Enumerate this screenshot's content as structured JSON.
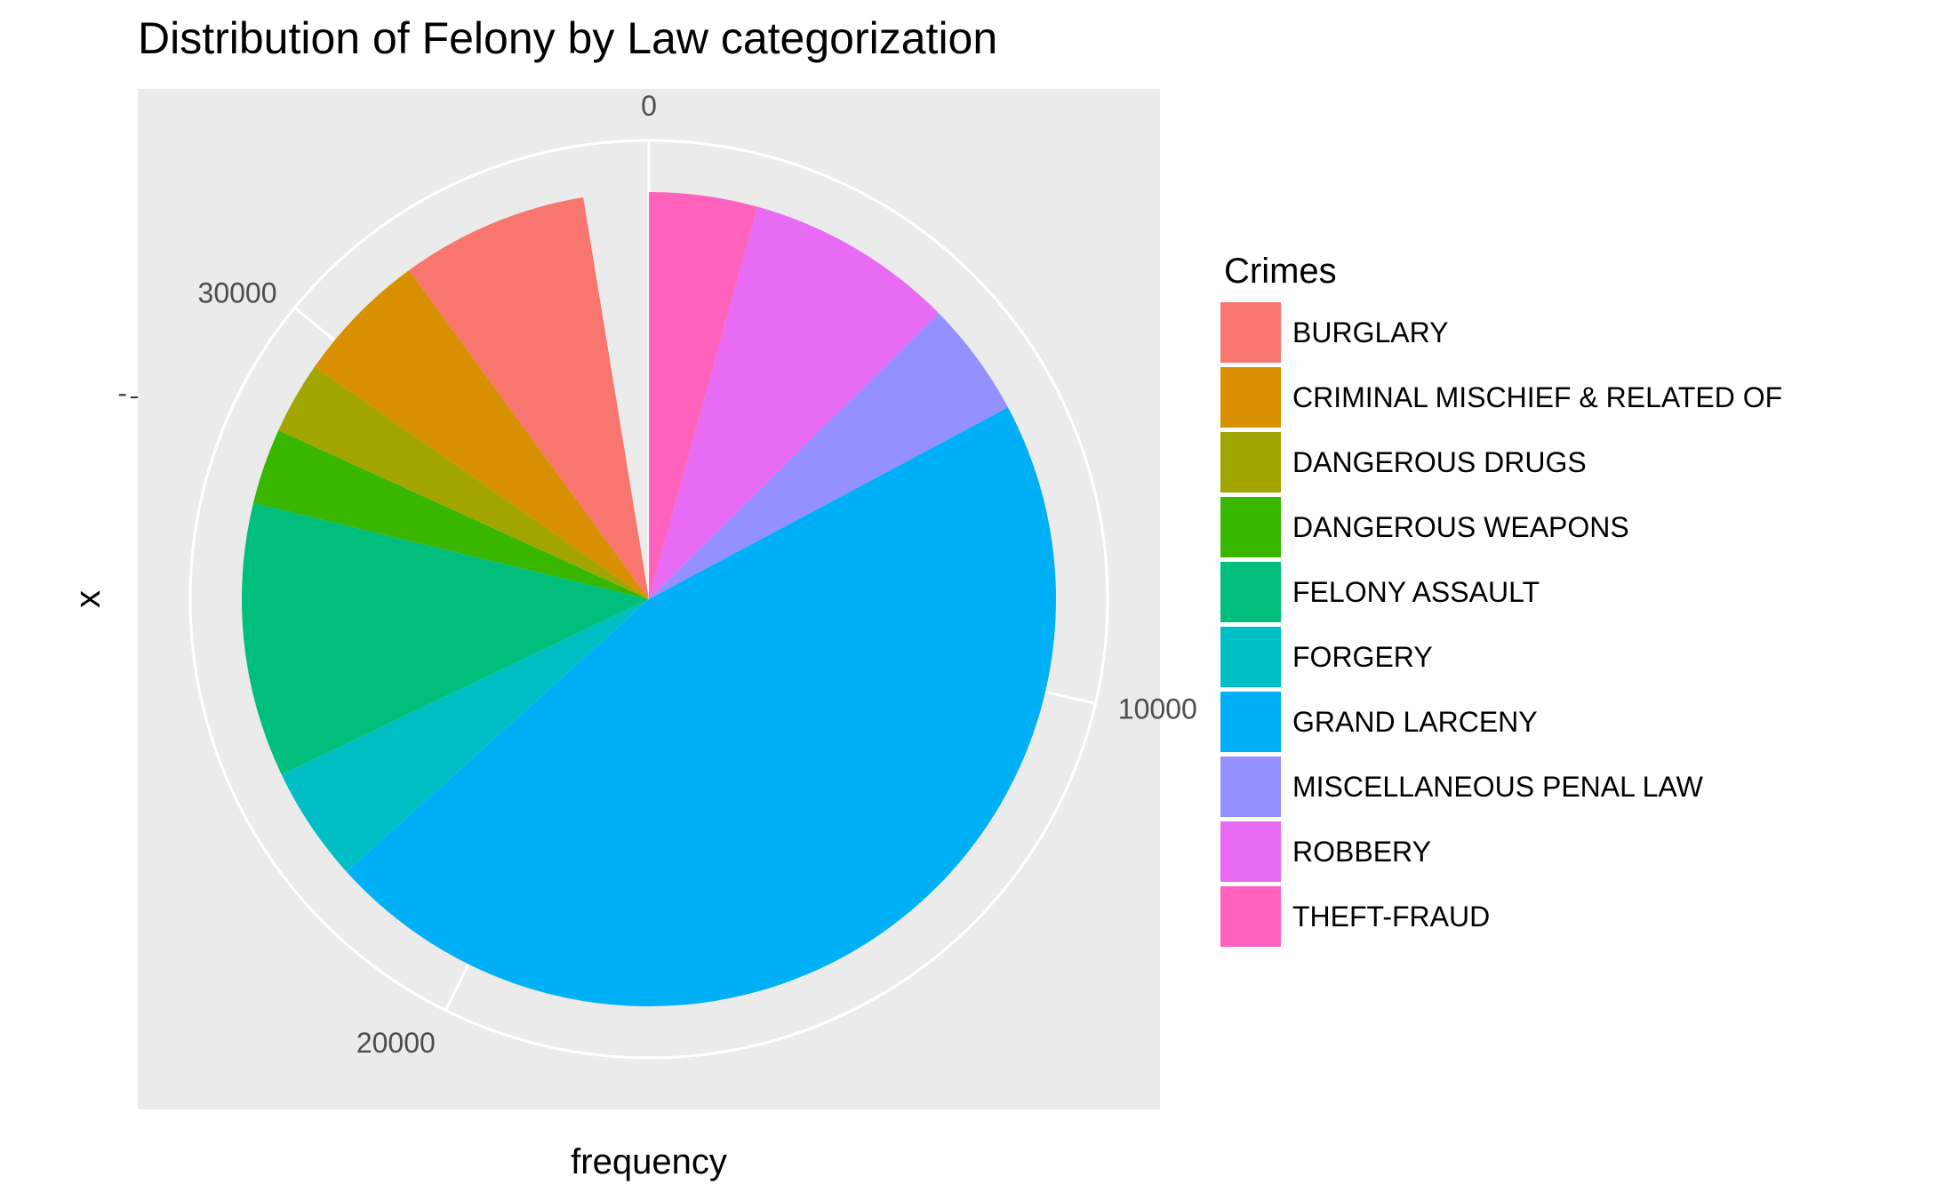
{
  "chart_data": {
    "type": "pie",
    "title": "Distribution of Felony by Law categorization",
    "xlabel": "frequency",
    "ylabel": "x",
    "y_tick_labels": [
      "-"
    ],
    "theta_ticks": [
      0,
      10000,
      20000,
      30000
    ],
    "theta_max": 34900,
    "grid": true,
    "legend_title": "Crimes",
    "legend_position": "right",
    "categories": [
      "BURGLARY",
      "CRIMINAL MISCHIEF & RELATED OF",
      "DANGEROUS DRUGS",
      "DANGEROUS WEAPONS",
      "FELONY ASSAULT",
      "FORGERY",
      "GRAND LARCENY",
      "MISCELLANEOUS PENAL LAW",
      "ROBBERY",
      "THEFT-FRAUD"
    ],
    "values": [
      2600,
      1850,
      1000,
      1050,
      3800,
      1600,
      16100,
      1600,
      2900,
      1500
    ],
    "stack_order": [
      "THEFT-FRAUD",
      "ROBBERY",
      "MISCELLANEOUS PENAL LAW",
      "GRAND LARCENY",
      "FORGERY",
      "FELONY ASSAULT",
      "DANGEROUS WEAPONS",
      "DANGEROUS DRUGS",
      "CRIMINAL MISCHIEF & RELATED OF",
      "BURGLARY"
    ],
    "colors": {
      "BURGLARY": "#F8766D",
      "CRIMINAL MISCHIEF & RELATED OF": "#D89000",
      "DANGEROUS DRUGS": "#A3A500",
      "DANGEROUS WEAPONS": "#39B600",
      "FELONY ASSAULT": "#00BF7D",
      "FORGERY": "#00BFC4",
      "GRAND LARCENY": "#00B0F6",
      "MISCELLANEOUS PENAL LAW": "#9590FF",
      "ROBBERY": "#E76BF3",
      "THEFT-FRAUD": "#FF62BC"
    },
    "panel_background": "#EBEBEB",
    "grid_color": "#FFFFFF"
  }
}
